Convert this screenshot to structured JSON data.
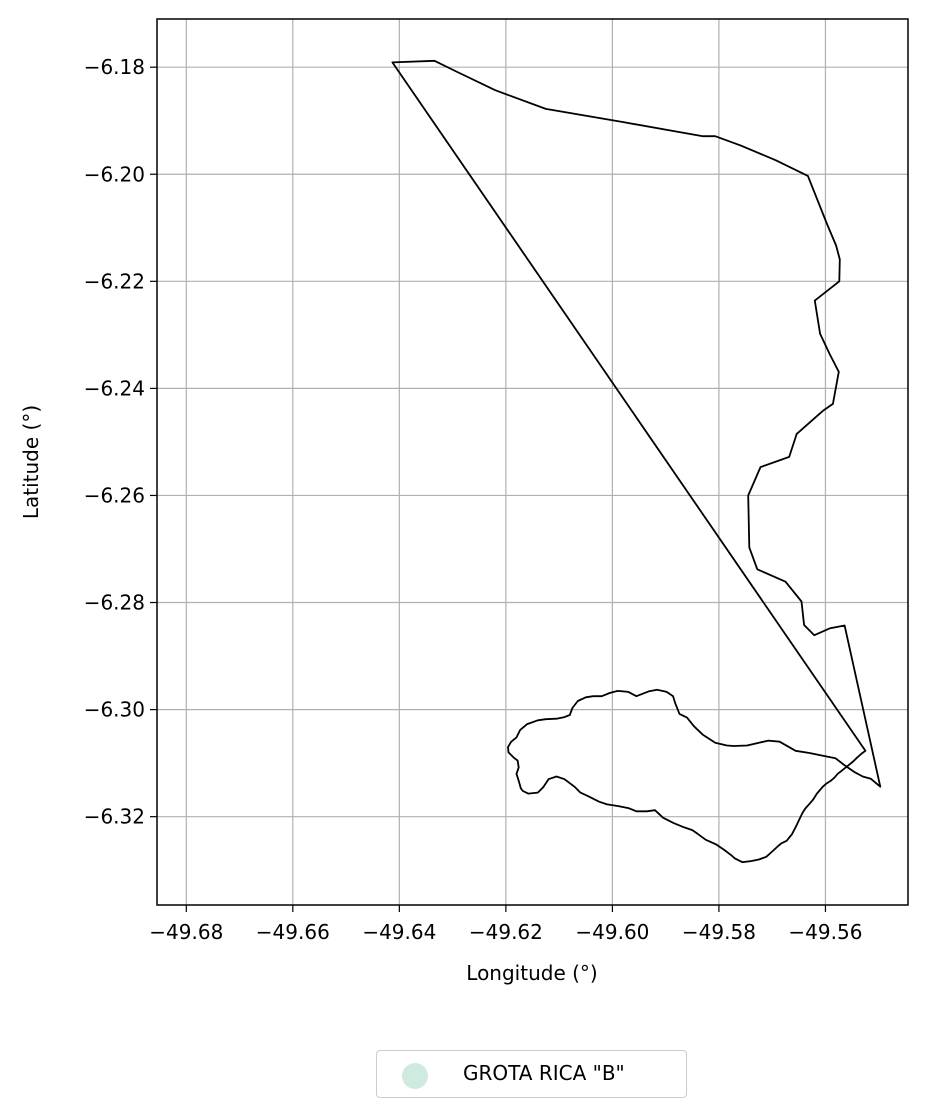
{
  "chart_data": {
    "type": "map",
    "xlabel": "Longitude (°)",
    "ylabel": "Latitude (°)",
    "xlim": [
      -49.6855,
      -49.5445
    ],
    "ylim": [
      -6.3365,
      -6.171
    ],
    "grid": true,
    "x_ticks": [
      -49.68,
      -49.66,
      -49.64,
      -49.62,
      -49.6,
      -49.58,
      -49.56
    ],
    "x_tick_labels": [
      "−49.68",
      "−49.66",
      "−49.64",
      "−49.62",
      "−49.60",
      "−49.58",
      "−49.56"
    ],
    "y_ticks": [
      -6.18,
      -6.2,
      -6.22,
      -6.24,
      -6.26,
      -6.28,
      -6.3,
      -6.32
    ],
    "y_tick_labels": [
      "−6.18",
      "−6.20",
      "−6.22",
      "−6.24",
      "−6.26",
      "−6.28",
      "−6.30",
      "−6.32"
    ],
    "legend": {
      "placement": "bottom-center",
      "entries": [
        {
          "label": "GROTA RICA \"B\"",
          "color": "#cfeadf"
        }
      ]
    },
    "outline_color": "#000000",
    "polygon": [
      [
        -49.6413,
        -6.1791
      ],
      [
        -49.6334,
        -6.1788
      ],
      [
        -49.6293,
        -6.1808
      ],
      [
        -49.622,
        -6.1843
      ],
      [
        -49.6125,
        -6.1878
      ],
      [
        -49.5978,
        -6.1903
      ],
      [
        -49.583,
        -6.1929
      ],
      [
        -49.5807,
        -6.1929
      ],
      [
        -49.576,
        -6.1946
      ],
      [
        -49.5693,
        -6.1974
      ],
      [
        -49.5633,
        -6.2003
      ],
      [
        -49.5597,
        -6.2093
      ],
      [
        -49.558,
        -6.2133
      ],
      [
        -49.5573,
        -6.2159
      ],
      [
        -49.5574,
        -6.22
      ],
      [
        -49.562,
        -6.2236
      ],
      [
        -49.561,
        -6.2298
      ],
      [
        -49.5592,
        -6.2336
      ],
      [
        -49.5575,
        -6.2369
      ],
      [
        -49.5586,
        -6.2429
      ],
      [
        -49.5605,
        -6.2442
      ],
      [
        -49.5654,
        -6.2485
      ],
      [
        -49.5668,
        -6.2528
      ],
      [
        -49.5722,
        -6.2547
      ],
      [
        -49.5745,
        -6.26
      ],
      [
        -49.5743,
        -6.2697
      ],
      [
        -49.5728,
        -6.2738
      ],
      [
        -49.5675,
        -6.2761
      ],
      [
        -49.5645,
        -6.2798
      ],
      [
        -49.564,
        -6.2842
      ],
      [
        -49.5621,
        -6.2861
      ],
      [
        -49.5591,
        -6.2848
      ],
      [
        -49.5564,
        -6.2843
      ],
      [
        -49.5497,
        -6.3144
      ],
      [
        -49.5515,
        -6.3129
      ],
      [
        -49.553,
        -6.3125
      ],
      [
        -49.5545,
        -6.3117
      ],
      [
        -49.5564,
        -6.3104
      ],
      [
        -49.5581,
        -6.3091
      ],
      [
        -49.56,
        -6.3087
      ],
      [
        -49.563,
        -6.3081
      ],
      [
        -49.5656,
        -6.3077
      ],
      [
        -49.5686,
        -6.306
      ],
      [
        -49.5707,
        -6.3058
      ],
      [
        -49.5747,
        -6.3067
      ],
      [
        -49.5772,
        -6.3068
      ],
      [
        -49.5785,
        -6.3067
      ],
      [
        -49.5807,
        -6.3062
      ],
      [
        -49.583,
        -6.3047
      ],
      [
        -49.5847,
        -6.3031
      ],
      [
        -49.586,
        -6.3015
      ],
      [
        -49.5874,
        -6.3008
      ],
      [
        -49.5882,
        -6.2988
      ],
      [
        -49.5886,
        -6.2975
      ],
      [
        -49.5898,
        -6.2967
      ],
      [
        -49.5916,
        -6.2963
      ],
      [
        -49.5932,
        -6.2966
      ],
      [
        -49.5955,
        -6.2975
      ],
      [
        -49.597,
        -6.2967
      ],
      [
        -49.599,
        -6.2965
      ],
      [
        -49.6005,
        -6.2969
      ],
      [
        -49.602,
        -6.2975
      ],
      [
        -49.6036,
        -6.2975
      ],
      [
        -49.605,
        -6.2977
      ],
      [
        -49.6065,
        -6.2984
      ],
      [
        -49.6075,
        -6.2997
      ],
      [
        -49.608,
        -6.301
      ],
      [
        -49.609,
        -6.3014
      ],
      [
        -49.6105,
        -6.3017
      ],
      [
        -49.6125,
        -6.3018
      ],
      [
        -49.614,
        -6.302
      ],
      [
        -49.616,
        -6.3027
      ],
      [
        -49.6173,
        -6.3038
      ],
      [
        -49.618,
        -6.3052
      ],
      [
        -49.619,
        -6.306
      ],
      [
        -49.6196,
        -6.307
      ],
      [
        -49.6195,
        -6.308
      ],
      [
        -49.6185,
        -6.309
      ],
      [
        -49.6178,
        -6.3095
      ],
      [
        -49.6176,
        -6.3108
      ],
      [
        -49.618,
        -6.312
      ],
      [
        -49.6176,
        -6.3133
      ],
      [
        -49.6172,
        -6.3147
      ],
      [
        -49.6168,
        -6.3152
      ],
      [
        -49.6158,
        -6.3157
      ],
      [
        -49.614,
        -6.3155
      ],
      [
        -49.613,
        -6.3145
      ],
      [
        -49.612,
        -6.313
      ],
      [
        -49.6105,
        -6.3125
      ],
      [
        -49.609,
        -6.313
      ],
      [
        -49.607,
        -6.3145
      ],
      [
        -49.606,
        -6.3155
      ],
      [
        -49.6045,
        -6.3162
      ],
      [
        -49.6025,
        -6.3172
      ],
      [
        -49.601,
        -6.3177
      ],
      [
        -49.599,
        -6.318
      ],
      [
        -49.597,
        -6.3184
      ],
      [
        -49.5955,
        -6.319
      ],
      [
        -49.5935,
        -6.319
      ],
      [
        -49.592,
        -6.3188
      ],
      [
        -49.5905,
        -6.3202
      ],
      [
        -49.5885,
        -6.3212
      ],
      [
        -49.5865,
        -6.322
      ],
      [
        -49.585,
        -6.3225
      ],
      [
        -49.584,
        -6.3232
      ],
      [
        -49.5825,
        -6.3243
      ],
      [
        -49.5805,
        -6.3252
      ],
      [
        -49.579,
        -6.3262
      ],
      [
        -49.5777,
        -6.3272
      ],
      [
        -49.577,
        -6.3278
      ],
      [
        -49.5756,
        -6.3285
      ],
      [
        -49.574,
        -6.3283
      ],
      [
        -49.5725,
        -6.328
      ],
      [
        -49.5711,
        -6.3275
      ],
      [
        -49.57,
        -6.3265
      ],
      [
        -49.569,
        -6.3256
      ],
      [
        -49.5683,
        -6.325
      ],
      [
        -49.5673,
        -6.3245
      ],
      [
        -49.5663,
        -6.3233
      ],
      [
        -49.5655,
        -6.3218
      ],
      [
        -49.5648,
        -6.3203
      ],
      [
        -49.5643,
        -6.3193
      ],
      [
        -49.5638,
        -6.3185
      ],
      [
        -49.563,
        -6.3176
      ],
      [
        -49.5623,
        -6.3168
      ],
      [
        -49.5616,
        -6.3157
      ],
      [
        -49.561,
        -6.315
      ],
      [
        -49.5605,
        -6.3144
      ],
      [
        -49.5598,
        -6.3138
      ],
      [
        -49.559,
        -6.3133
      ],
      [
        -49.5583,
        -6.3127
      ],
      [
        -49.5577,
        -6.312
      ],
      [
        -49.5568,
        -6.3113
      ],
      [
        -49.5558,
        -6.3105
      ],
      [
        -49.5548,
        -6.3097
      ],
      [
        -49.5541,
        -6.309
      ],
      [
        -49.5533,
        -6.3083
      ],
      [
        -49.5525,
        -6.3077
      ]
    ]
  }
}
